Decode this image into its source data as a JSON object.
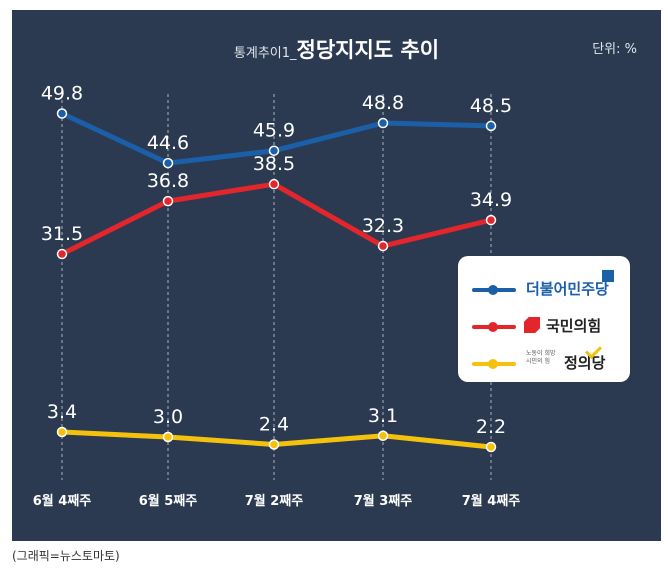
{
  "title": {
    "prefix": "통계추이1_",
    "main": "정당지지도 추이"
  },
  "unit_label": "단위: %",
  "caption": "(그래픽=뉴스토마토)",
  "colors": {
    "background": "#2b3a50",
    "democratic": "#1b5fa8",
    "ppp": "#e3262c",
    "justice": "#f4c20d"
  },
  "legend": {
    "items": [
      {
        "name": "더불어민주당",
        "color": "#1b5fa8",
        "icon": "flag-icon"
      },
      {
        "name": "국민의힘",
        "color": "#e3262c",
        "icon": "hexagon-icon"
      },
      {
        "name": "정의당",
        "sub": "노동이 희망 시민의 힘",
        "color": "#f4c20d",
        "icon": "check-icon"
      }
    ]
  },
  "chart_data": {
    "type": "line",
    "title": "정당지지도 추이",
    "categories": [
      "6월 4째주",
      "6월 5째주",
      "7월 2째주",
      "7월 3째주",
      "7월 4째주"
    ],
    "series": [
      {
        "name": "더불어민주당",
        "color": "#1b5fa8",
        "values": [
          49.8,
          44.6,
          45.9,
          48.8,
          48.5
        ],
        "labels": [
          "49.8",
          "44.6",
          "45.9",
          "48.8",
          "48.5"
        ]
      },
      {
        "name": "국민의힘",
        "color": "#e3262c",
        "values": [
          31.5,
          36.8,
          38.5,
          32.3,
          34.9
        ],
        "labels": [
          "31.5",
          "36.8",
          "38.5",
          "32.3",
          "34.9"
        ]
      },
      {
        "name": "정의당",
        "color": "#f4c20d",
        "values": [
          3.4,
          3.0,
          2.4,
          3.1,
          2.2
        ],
        "labels": [
          "3.4",
          "3.0",
          "2.4",
          "3.1",
          "2.2"
        ]
      }
    ],
    "grid": "vertical-dashed",
    "legend_position": "right"
  }
}
